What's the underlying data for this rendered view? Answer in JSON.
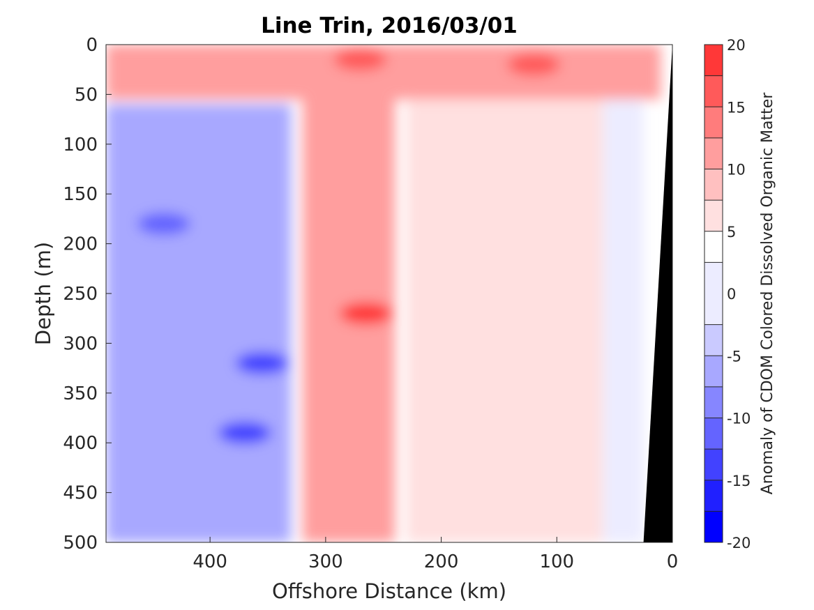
{
  "chart_data": {
    "type": "heatmap",
    "title": "Line Trin, 2016/03/01",
    "xlabel": "Offshore Distance (km)",
    "ylabel": "Depth (m)",
    "colorbar_label": "Anomaly of CDOM Colored Dissolved Organic Matter",
    "xlim": [
      490,
      0
    ],
    "ylim": [
      500,
      0
    ],
    "x_ticks": [
      400,
      300,
      200,
      100,
      0
    ],
    "y_ticks": [
      0,
      50,
      100,
      150,
      200,
      250,
      300,
      350,
      400,
      450,
      500
    ],
    "colorbar_ticks": [
      20,
      15,
      10,
      5,
      0,
      -5,
      -10,
      -15,
      -20
    ],
    "colorbar_range": [
      -20,
      20
    ],
    "contour_levels": [
      -20,
      -17.5,
      -15,
      -12.5,
      -10,
      -7.5,
      -5,
      -2.5,
      2.5,
      5,
      7.5,
      10,
      12.5,
      15,
      17.5,
      20
    ],
    "level_colors": [
      "#0000ff",
      "#2020ff",
      "#4242ff",
      "#6464ff",
      "#8686ff",
      "#a8a8ff",
      "#cacaff",
      "#ececff",
      "#ffffff",
      "#ffe0e0",
      "#ffc0c0",
      "#ff9e9e",
      "#ff7c7c",
      "#ff5a5a",
      "#ff3838",
      "#ff0000"
    ],
    "regions": [
      {
        "name": "offshore negative anomaly",
        "x_range": [
          490,
          330
        ],
        "depth_range": [
          60,
          500
        ],
        "anomaly": [
          -12,
          -2
        ]
      },
      {
        "name": "surface positive layer",
        "x_range": [
          490,
          10
        ],
        "depth_range": [
          0,
          55
        ],
        "anomaly": [
          3,
          18
        ]
      },
      {
        "name": "central positive core",
        "x_range": [
          320,
          240
        ],
        "depth_range": [
          0,
          500
        ],
        "anomaly": [
          5,
          17
        ]
      },
      {
        "name": "nearshore weak positive",
        "x_range": [
          230,
          60
        ],
        "depth_range": [
          55,
          500
        ],
        "anomaly": [
          2,
          8
        ]
      },
      {
        "name": "coastal near-zero band",
        "x_range": [
          60,
          25
        ],
        "depth_range": [
          55,
          500
        ],
        "anomaly": [
          -1,
          3
        ]
      }
    ],
    "extremes": [
      {
        "x": 265,
        "depth": 270,
        "anomaly": 18
      },
      {
        "x": 270,
        "depth": 15,
        "anomaly": 17
      },
      {
        "x": 120,
        "depth": 20,
        "anomaly": 16
      },
      {
        "x": 370,
        "depth": 390,
        "anomaly": -14
      },
      {
        "x": 355,
        "depth": 320,
        "anomaly": -14
      },
      {
        "x": 440,
        "depth": 180,
        "anomaly": -11
      }
    ],
    "zero_contour_color": "#000000",
    "land_color": "#000000",
    "land_boundary": [
      {
        "x": 0,
        "depth": 0
      },
      {
        "x": 25,
        "depth": 500
      }
    ]
  }
}
